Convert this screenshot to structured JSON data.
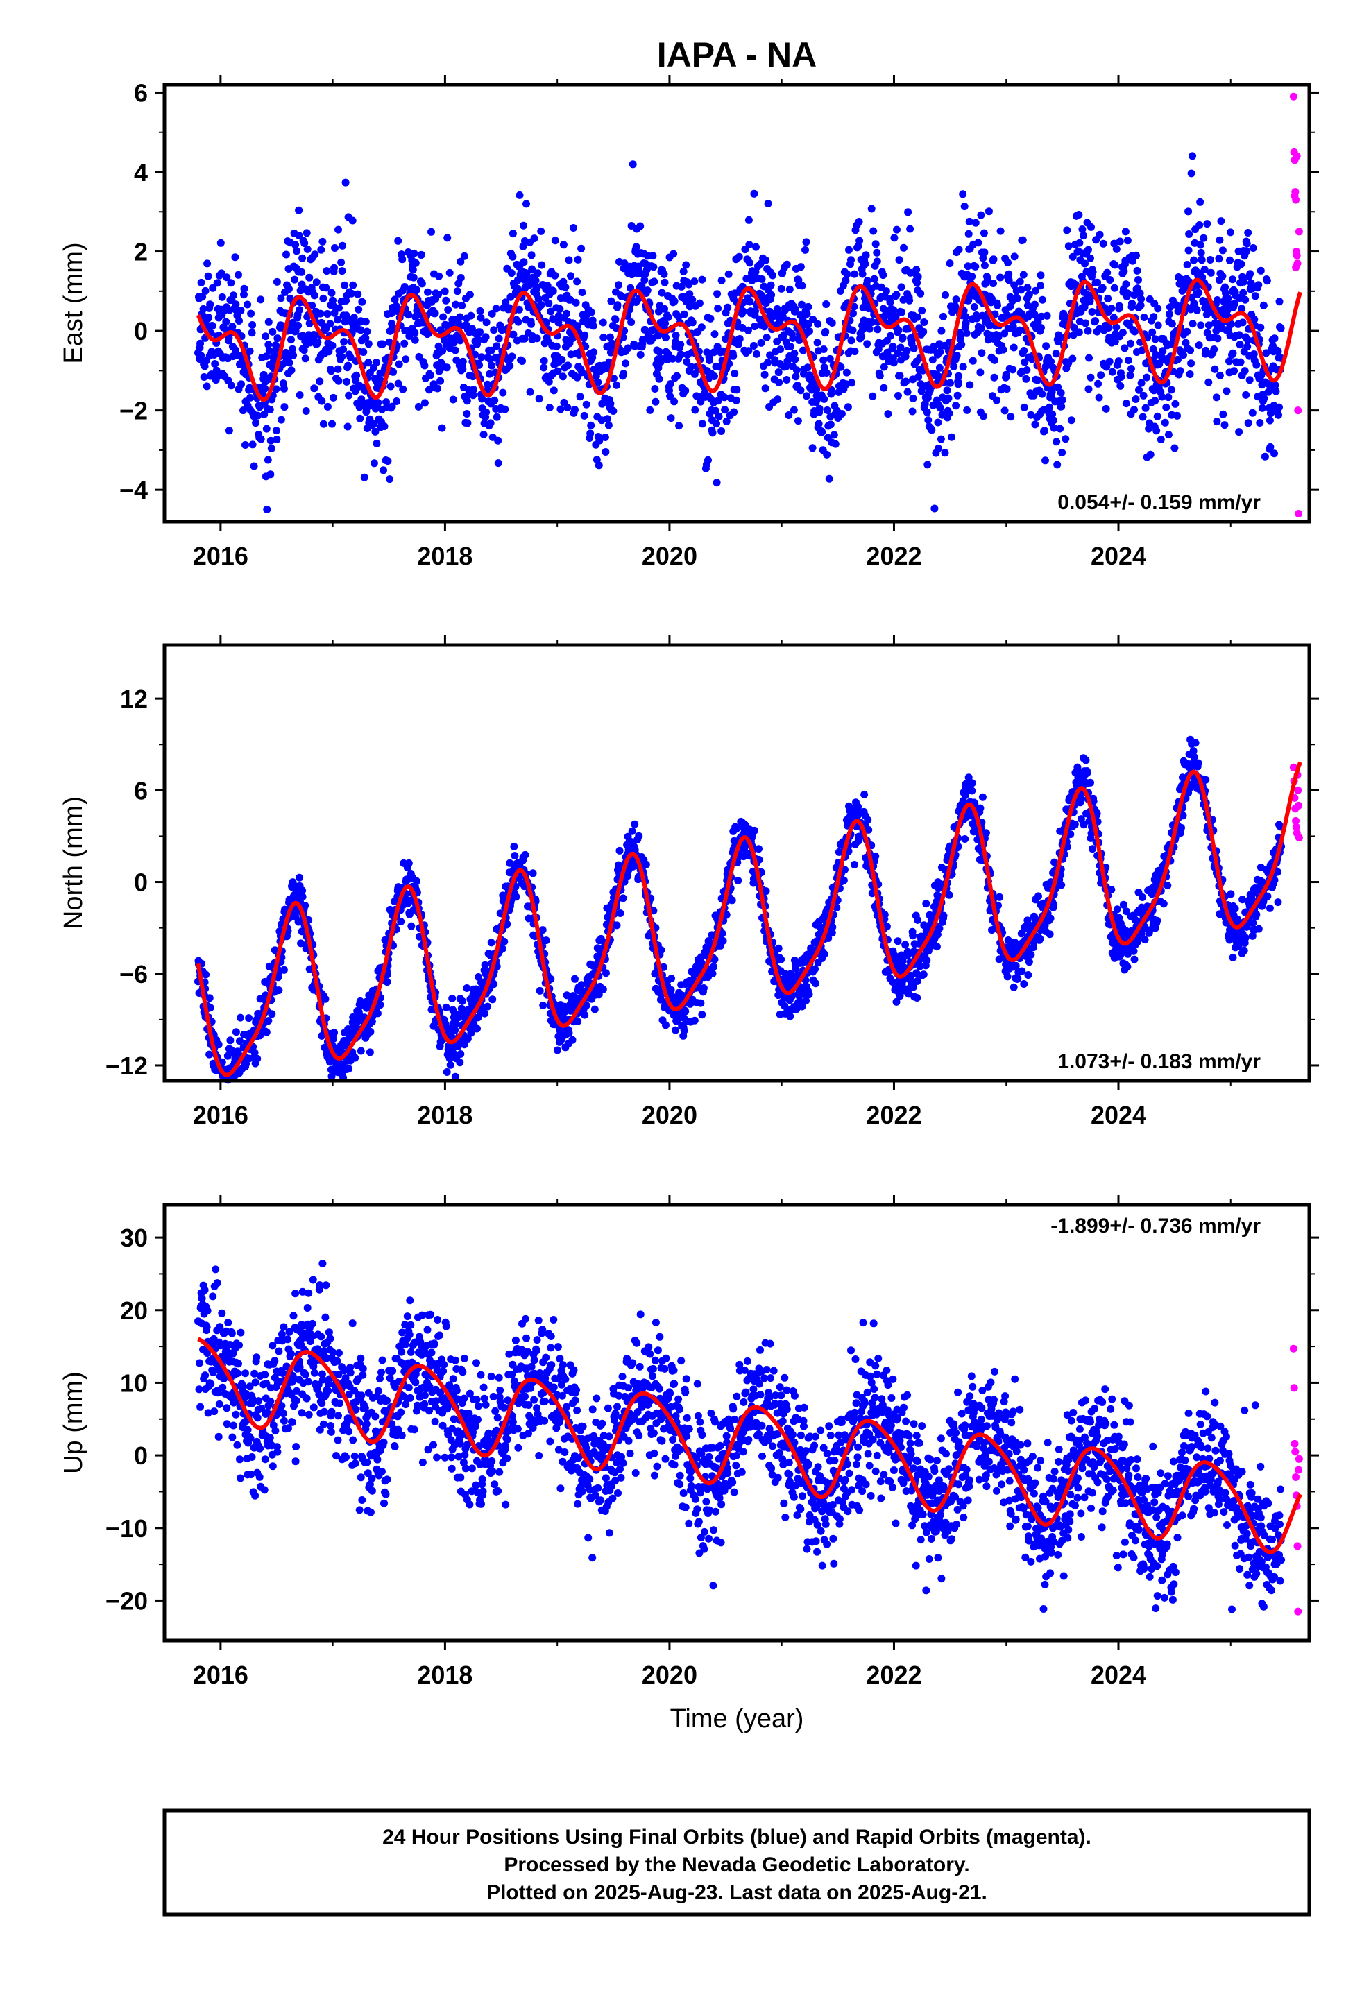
{
  "chart_data": [
    {
      "type": "scatter",
      "title": "IAPA - NA",
      "ylabel": "East (mm)",
      "xlabel": "",
      "xlim": [
        2015.5,
        2025.7
      ],
      "ylim": [
        -4.8,
        6.2
      ],
      "yticks": [
        -4,
        -2,
        0,
        2,
        4,
        6
      ],
      "yticks_minor": [
        -3,
        -1,
        1,
        3,
        5
      ],
      "xticks": [
        2016,
        2018,
        2020,
        2022,
        2024
      ],
      "xticks_minor": [
        2017,
        2019,
        2021,
        2023,
        2025
      ],
      "rate": "0.054+/- 0.159 mm/yr",
      "rate_position": "bottom-right",
      "series": [
        {
          "name": "Final Orbits",
          "kind": "points",
          "color": "#0000ff",
          "model": {
            "offset": -0.1,
            "trend": 0.054,
            "annual": [
              0.9,
              3.6
            ],
            "semiannual": [
              0.6,
              0.4
            ],
            "noise": 1.0,
            "x0": 2015.8,
            "x1": 2025.45,
            "count": 3100,
            "seed": 11
          }
        },
        {
          "name": "Rapid Orbits",
          "kind": "points",
          "color": "#ff00ff",
          "x": [
            2025.56,
            2025.565,
            2025.57,
            2025.575,
            2025.58,
            2025.585,
            2025.59,
            2025.595,
            2025.6,
            2025.605,
            2025.61,
            2025.57,
            2025.58,
            2025.59
          ],
          "y": [
            5.9,
            4.5,
            4.3,
            3.5,
            3.3,
            2.0,
            1.9,
            1.7,
            -2.0,
            -4.6,
            2.5,
            3.4,
            1.6,
            4.4
          ]
        },
        {
          "name": "Model fit",
          "kind": "line",
          "color": "#ff0000",
          "x0": 2015.8,
          "x1": 2025.62,
          "model": {
            "offset": -0.1,
            "trend": 0.054,
            "annual": [
              0.9,
              3.6
            ],
            "semiannual": [
              0.6,
              0.4
            ]
          }
        }
      ]
    },
    {
      "type": "scatter",
      "title": "",
      "ylabel": "North (mm)",
      "xlabel": "",
      "xlim": [
        2015.5,
        2025.7
      ],
      "ylim": [
        -13,
        15.5
      ],
      "yticks": [
        -12,
        -6,
        0,
        6,
        12
      ],
      "yticks_minor": [
        -9,
        -3,
        3,
        9
      ],
      "xticks": [
        2016,
        2018,
        2020,
        2022,
        2024
      ],
      "xticks_minor": [
        2017,
        2019,
        2021,
        2023,
        2025
      ],
      "rate": "1.073+/- 0.183 mm/yr",
      "rate_position": "bottom-right",
      "series": [
        {
          "name": "Final Orbits",
          "kind": "points",
          "color": "#0000ff",
          "model": {
            "offset": -3.3,
            "trend": 1.073,
            "annual": [
              5.0,
              2.45
            ],
            "semiannual": [
              1.2,
              0.9
            ],
            "noise": 0.9,
            "x0": 2015.8,
            "x1": 2025.45,
            "count": 3100,
            "seed": 23
          }
        },
        {
          "name": "Rapid Orbits",
          "kind": "points",
          "color": "#ff00ff",
          "x": [
            2025.56,
            2025.565,
            2025.57,
            2025.575,
            2025.58,
            2025.585,
            2025.59,
            2025.595,
            2025.6,
            2025.605,
            2025.61
          ],
          "y": [
            7.5,
            6.6,
            5.5,
            4.8,
            4.0,
            3.6,
            3.2,
            7.0,
            6.0,
            5.0,
            2.9
          ]
        },
        {
          "name": "Model fit",
          "kind": "line",
          "color": "#ff0000",
          "x0": 2015.8,
          "x1": 2025.62,
          "model": {
            "offset": -3.3,
            "trend": 1.073,
            "annual": [
              5.0,
              2.45
            ],
            "semiannual": [
              1.2,
              0.9
            ]
          }
        }
      ]
    },
    {
      "type": "scatter",
      "title": "",
      "ylabel": "Up (mm)",
      "xlabel": "Time (year)",
      "xlim": [
        2015.5,
        2025.7
      ],
      "ylim": [
        -25.5,
        34.5
      ],
      "yticks": [
        -20,
        -10,
        0,
        10,
        20,
        30
      ],
      "yticks_minor": [
        -15,
        -5,
        5,
        15,
        25
      ],
      "xticks": [
        2016,
        2018,
        2020,
        2022,
        2024
      ],
      "xticks_minor": [
        2017,
        2019,
        2021,
        2023,
        2025
      ],
      "rate": "-1.899+/- 0.736 mm/yr",
      "rate_position": "top-right",
      "series": [
        {
          "name": "Final Orbits",
          "kind": "points",
          "color": "#0000ff",
          "model": {
            "offset": 2.0,
            "trend": -1.899,
            "annual": [
              5.5,
              3.6
            ],
            "semiannual": [
              0.8,
              0.2
            ],
            "noise": 4.5,
            "x0": 2015.8,
            "x1": 2025.45,
            "count": 3100,
            "seed": 37
          }
        },
        {
          "name": "Rapid Orbits",
          "kind": "points",
          "color": "#ff00ff",
          "x": [
            2025.56,
            2025.565,
            2025.57,
            2025.575,
            2025.58,
            2025.585,
            2025.59,
            2025.595,
            2025.6,
            2025.605,
            2025.61
          ],
          "y": [
            14.7,
            9.3,
            1.6,
            0.5,
            -3.0,
            -5.5,
            -7.0,
            -12.5,
            -21.5,
            -2.0,
            -0.5
          ]
        },
        {
          "name": "Model fit",
          "kind": "line",
          "color": "#ff0000",
          "x0": 2015.8,
          "x1": 2025.62,
          "model": {
            "offset": 2.0,
            "trend": -1.899,
            "annual": [
              5.5,
              3.6
            ],
            "semiannual": [
              0.8,
              0.2
            ]
          }
        }
      ]
    }
  ],
  "footer": {
    "line1": "24 Hour Positions Using Final Orbits (blue) and Rapid Orbits (magenta).",
    "line2": "Processed by the Nevada Geodetic Laboratory.",
    "line3": "Plotted on 2025-Aug-23. Last data on 2025-Aug-21."
  }
}
